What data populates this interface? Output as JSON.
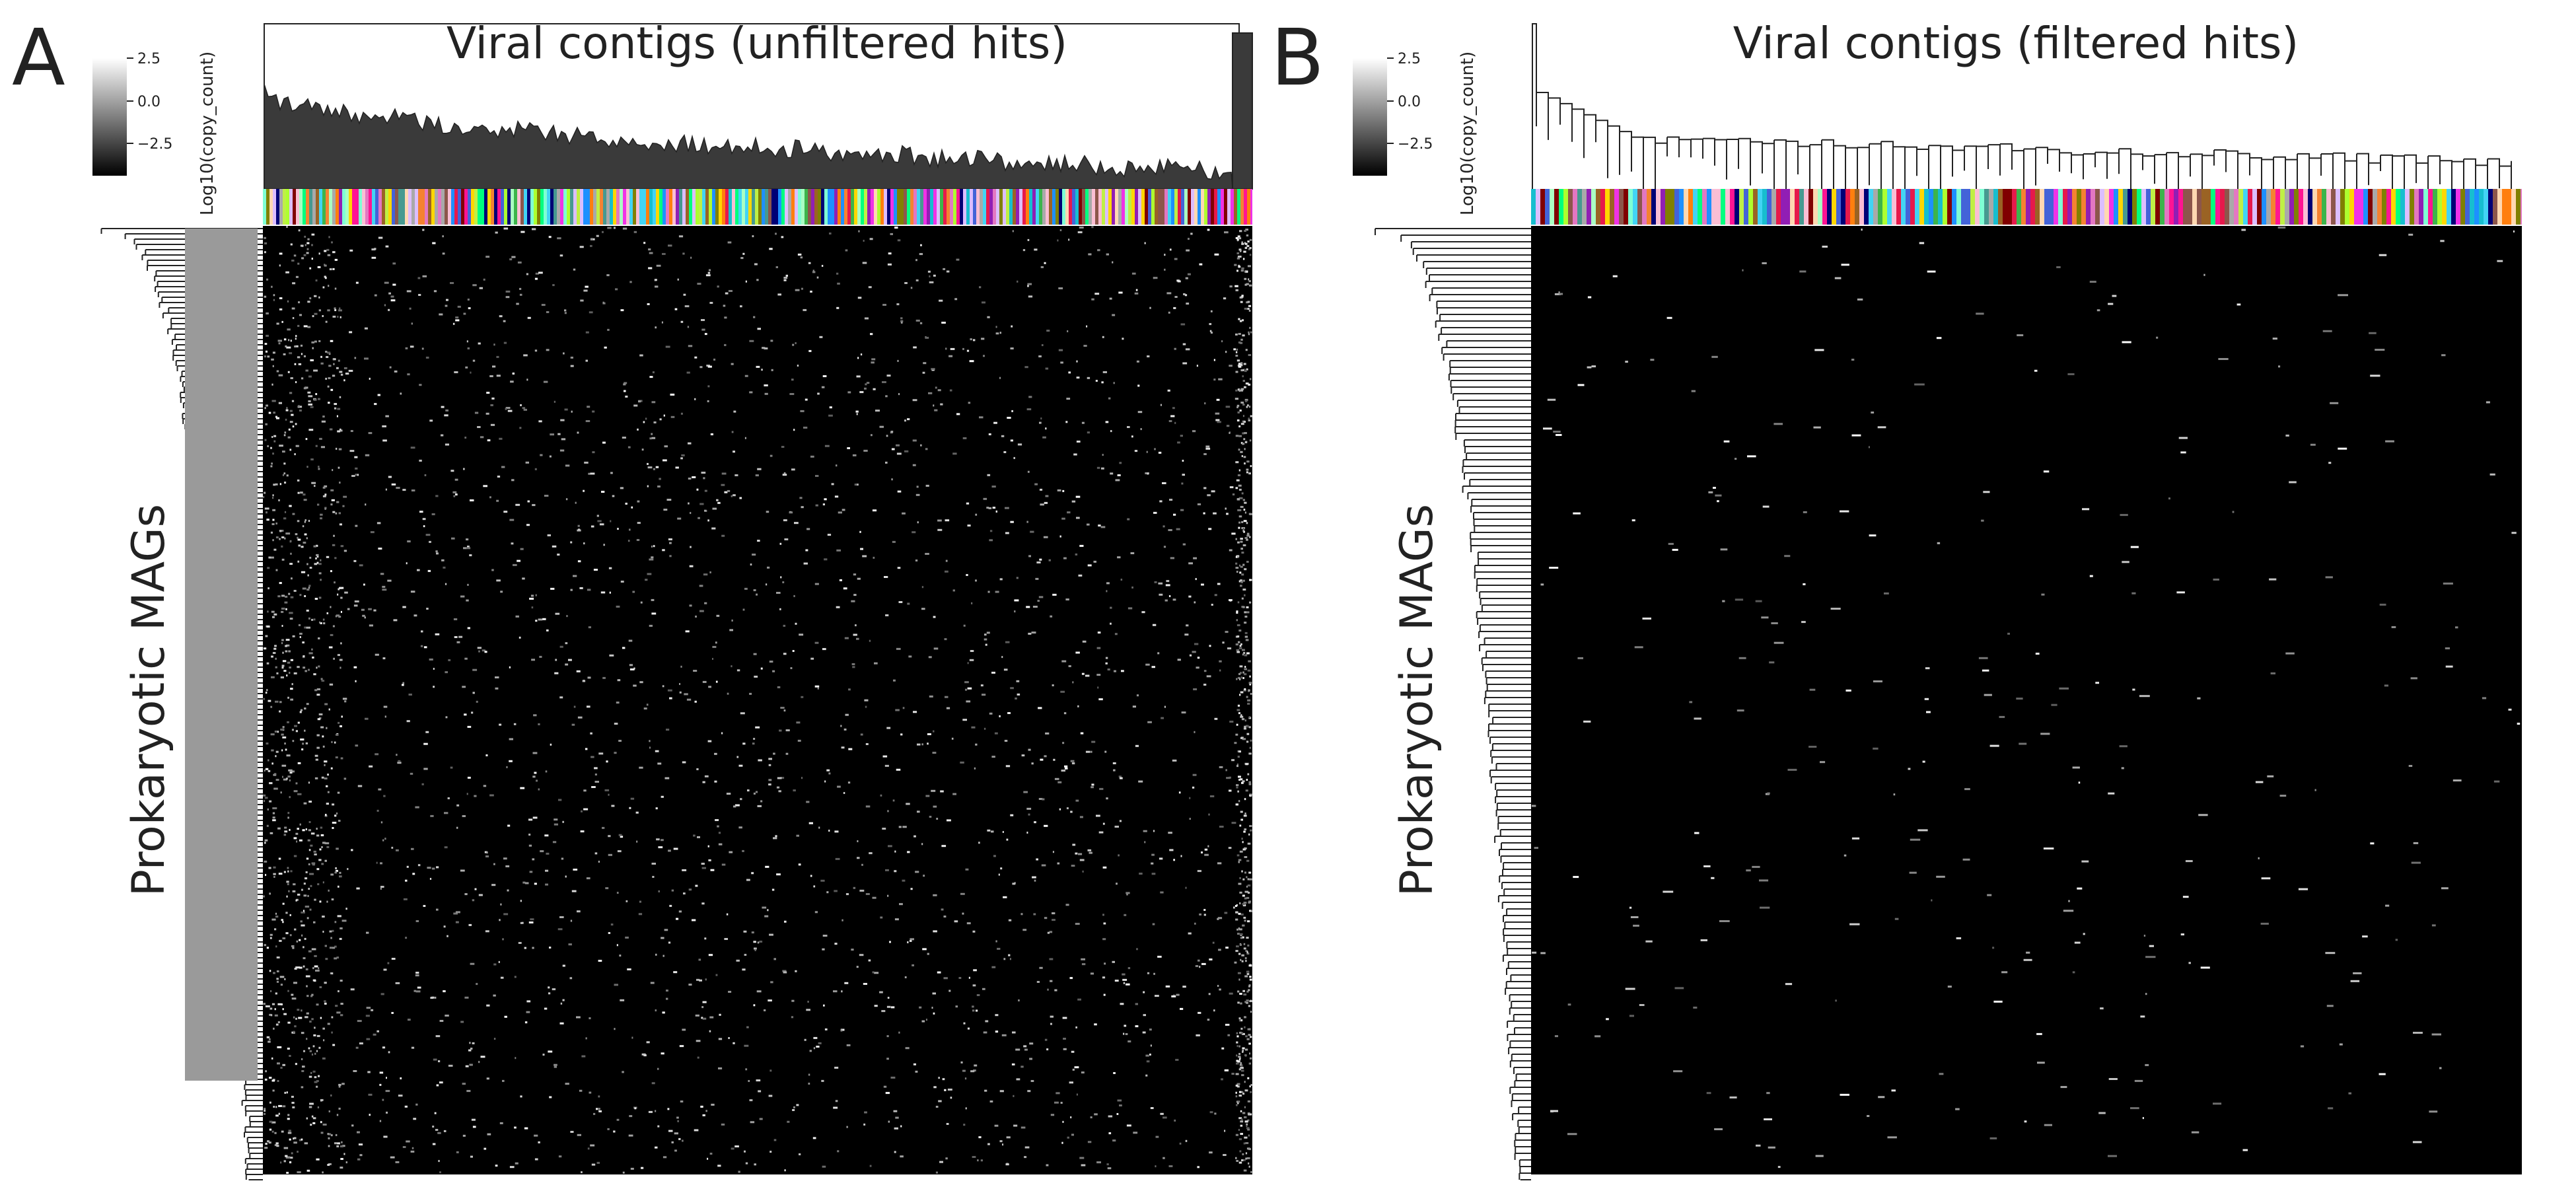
{
  "chart_data": [
    {
      "type": "heatmap",
      "panel_label": "A",
      "title": "Viral contigs (unfiltered hits)",
      "ylabel": "Prokaryotic MAGs",
      "colorbar": {
        "label": "Log10(copy_count)",
        "ticks": [
          "2.5",
          "0.0",
          "−2.5"
        ],
        "range": [
          -5,
          4
        ],
        "colormap": [
          "#000000",
          "#ffffff"
        ]
      },
      "column_dendrogram": true,
      "row_dendrogram": true,
      "column_color_annotation": true,
      "background_value": -5,
      "hit_density": "dense"
    },
    {
      "type": "heatmap",
      "panel_label": "B",
      "title": "Viral contigs (filtered hits)",
      "ylabel": "Prokaryotic MAGs",
      "colorbar": {
        "label": "Log10(copy_count)",
        "ticks": [
          "2.5",
          "0.0",
          "−2.5"
        ],
        "range": [
          -5,
          4
        ],
        "colormap": [
          "#000000",
          "#ffffff"
        ]
      },
      "column_dendrogram": true,
      "row_dendrogram": true,
      "column_color_annotation": true,
      "background_value": -5,
      "hit_density": "sparse"
    }
  ],
  "colors": {
    "background": "#ffffff",
    "heatmap_background": "#000000",
    "text": "#222222",
    "dendrogram_fill_a": "#3a3a3a",
    "dendrogram_line": "#222222",
    "annotation_palette": [
      "#e6194b",
      "#3cb44b",
      "#4363d8",
      "#f58231",
      "#911eb4",
      "#42d4f4",
      "#f032e6",
      "#bfef45",
      "#fabed4",
      "#469990",
      "#dcbeff",
      "#9a6324",
      "#800000",
      "#aaffc3",
      "#808000",
      "#ffd8b1",
      "#000075",
      "#a9a9a9",
      "#ff7f0e",
      "#17becf",
      "#8c564b",
      "#e377c2",
      "#00ff7f",
      "#ff1493",
      "#1e90ff",
      "#ffd700",
      "#7fffd4",
      "#adff2f"
    ]
  }
}
